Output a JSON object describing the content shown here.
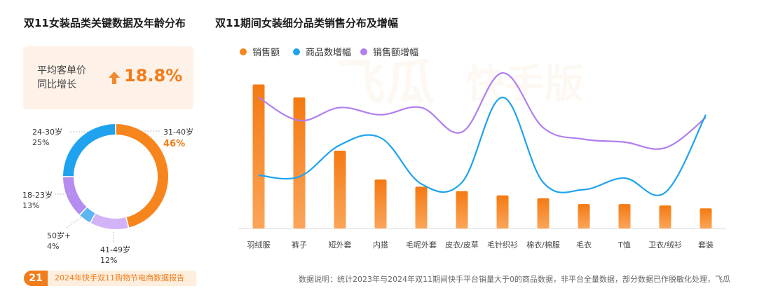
{
  "header": {
    "left_title": "双11女装品类关键数据及年龄分布",
    "right_title": "双11期间女装细分品类销售分布及增幅"
  },
  "kpi": {
    "label_line1": "平均客单价",
    "label_line2": "同比增长",
    "value": "18.8%"
  },
  "donut": {
    "segments": [
      {
        "label": "31-40岁",
        "percent_text": "46%",
        "value": 46,
        "color": "#f7851d"
      },
      {
        "label": "41-49岁",
        "percent_text": "12%",
        "value": 12,
        "color": "#d3b3f7"
      },
      {
        "label": "50岁+",
        "percent_text": "4%",
        "value": 4,
        "color": "#5cb6f2"
      },
      {
        "label": "18-23岁",
        "percent_text": "13%",
        "value": 13,
        "color": "#b58cf0"
      },
      {
        "label": "24-30岁",
        "percent_text": "25%",
        "value": 25,
        "color": "#1fa3ee"
      }
    ]
  },
  "chart_data": {
    "type": "bar",
    "categories": [
      "羽绒服",
      "裤子",
      "短外套",
      "内搭",
      "毛呢外套",
      "皮衣/皮草",
      "毛针织衫",
      "棉衣/棉服",
      "毛衣",
      "T恤",
      "卫衣/绒衫",
      "套装"
    ],
    "series": [
      {
        "name": "销售额",
        "type": "bar",
        "color": "#f7851d",
        "values": [
          100,
          91,
          54,
          34,
          29,
          26,
          23,
          21,
          17,
          17,
          16,
          14
        ]
      },
      {
        "name": "商品数增幅",
        "type": "line",
        "color": "#1fa3ee",
        "values": [
          37,
          36,
          58,
          63,
          31,
          32,
          91,
          32,
          27,
          35,
          25,
          79
        ]
      },
      {
        "name": "销售额增幅",
        "type": "line",
        "color": "#b07ff0",
        "values": [
          91,
          75,
          84,
          79,
          84,
          67,
          108,
          70,
          62,
          60,
          56,
          77
        ]
      }
    ],
    "legend_position": "top-left",
    "grid": false
  },
  "footer": {
    "page_number": "21",
    "report_title": "2024年快手双11购物节电商数据报告",
    "note": "数据说明：统计2023年与2024年双11期间快手平台销量大于0的商品数据，非平台全量数据，部分数据已作脱敏化处理，飞瓜"
  },
  "watermark": {
    "brand": "飞瓜",
    "edition": "快手版"
  }
}
